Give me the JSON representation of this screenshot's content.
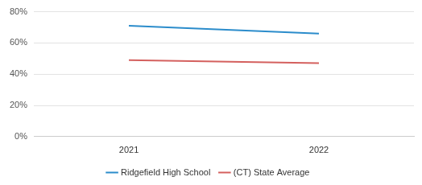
{
  "chart_data": {
    "type": "line",
    "categories": [
      "2021",
      "2022"
    ],
    "series": [
      {
        "name": "Ridgefield High School",
        "color": "#2b8ccb",
        "values": [
          71,
          66
        ]
      },
      {
        "name": "(CT) State Average",
        "color": "#d4605e",
        "values": [
          49,
          47
        ]
      }
    ],
    "ylim": [
      0,
      80
    ],
    "yticks": [
      {
        "value": 0,
        "label": "0%"
      },
      {
        "value": 20,
        "label": "20%"
      },
      {
        "value": 40,
        "label": "40%"
      },
      {
        "value": 60,
        "label": "60%"
      },
      {
        "value": 80,
        "label": "80%"
      }
    ],
    "grid": true,
    "legend": "bottom",
    "marker": "none"
  }
}
